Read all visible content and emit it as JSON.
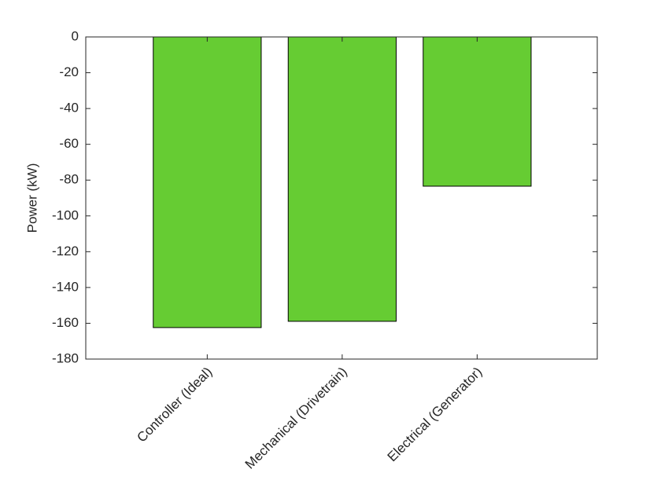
{
  "chart_data": {
    "type": "bar",
    "ylabel": "Power (kW)",
    "categories": [
      "Controller (Ideal)",
      "Mechanical (Drivetrain)",
      "Electrical (Generator)"
    ],
    "values": [
      -162.4,
      -158.9,
      -83.4
    ],
    "color": "#66cc33",
    "ylim": [
      -180,
      0
    ],
    "yticks": [
      -180,
      -160,
      -140,
      -120,
      -100,
      -80,
      -60,
      -40,
      -20,
      0
    ],
    "grid": false
  }
}
